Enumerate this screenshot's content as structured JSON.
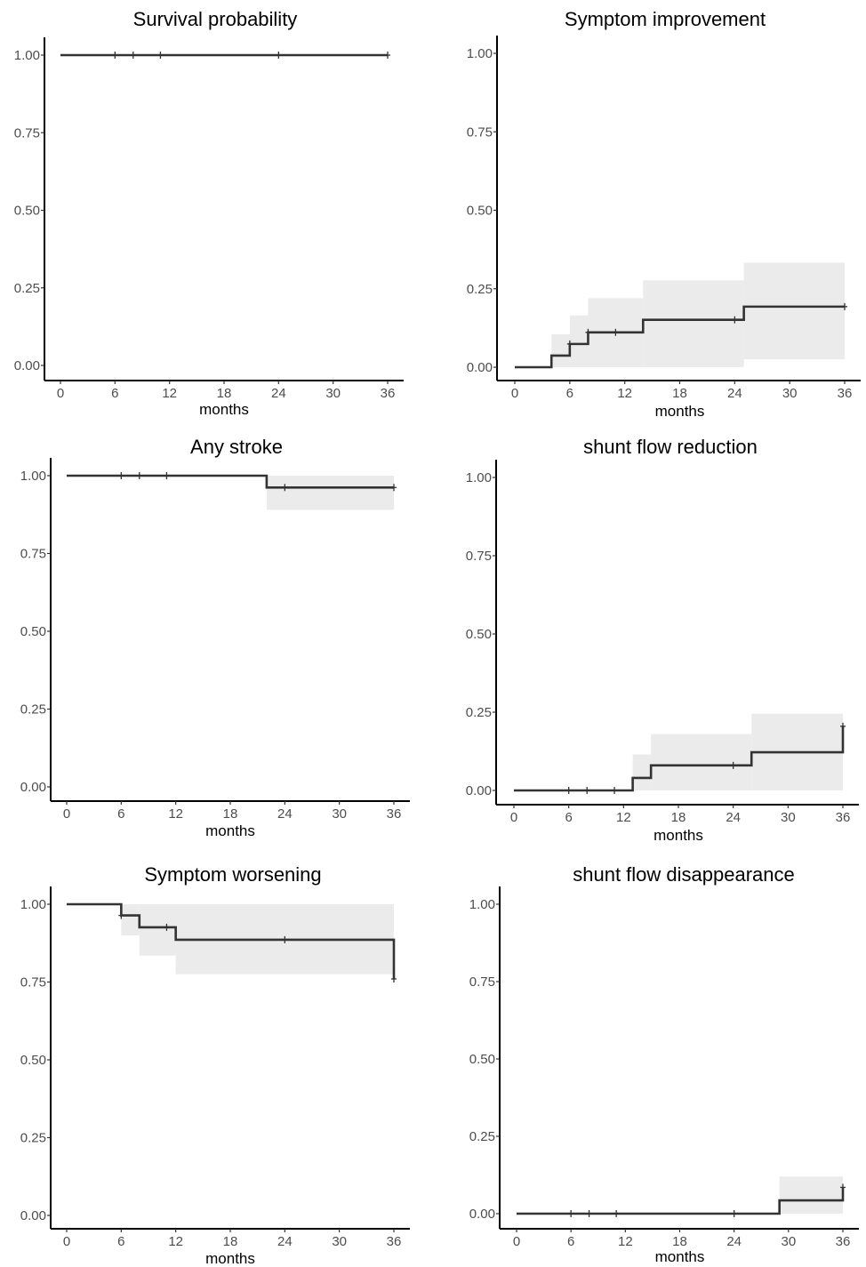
{
  "chart_data": [
    {
      "type": "line",
      "title": "Survival probability",
      "xlabel": "months",
      "ylabel": "",
      "xlim": [
        0,
        36
      ],
      "ylim": [
        0,
        1
      ],
      "x_ticks": [
        0,
        6,
        12,
        18,
        24,
        30,
        36
      ],
      "y_ticks": [
        "0.00",
        "0.25",
        "0.50",
        "0.75",
        "1.00"
      ],
      "series": [
        {
          "steps": [
            [
              0,
              1.0
            ],
            [
              36,
              1.0
            ]
          ],
          "ci": [],
          "censored": [
            [
              6,
              1.0
            ],
            [
              8,
              1.0
            ],
            [
              11,
              1.0
            ],
            [
              24,
              1.0
            ],
            [
              36,
              1.0
            ]
          ]
        }
      ]
    },
    {
      "type": "line",
      "title": "Symptom improvement",
      "xlabel": "months",
      "ylabel": "",
      "xlim": [
        0,
        36
      ],
      "ylim": [
        0,
        1
      ],
      "x_ticks": [
        0,
        6,
        12,
        18,
        24,
        30,
        36
      ],
      "y_ticks": [
        "0.00",
        "0.25",
        "0.50",
        "0.75",
        "1.00"
      ],
      "series": [
        {
          "steps": [
            [
              0,
              0.0
            ],
            [
              4,
              0.037
            ],
            [
              6,
              0.074
            ],
            [
              8,
              0.111
            ],
            [
              14,
              0.151
            ],
            [
              25,
              0.193
            ],
            [
              36,
              0.193
            ]
          ],
          "ci": [
            [
              4,
              0.0,
              0.105
            ],
            [
              6,
              0.0,
              0.165
            ],
            [
              8,
              0.0,
              0.22
            ],
            [
              14,
              0.0,
              0.277
            ],
            [
              25,
              0.025,
              0.333
            ],
            [
              36,
              0.025,
              0.333
            ]
          ],
          "censored": [
            [
              6,
              0.074
            ],
            [
              8,
              0.111
            ],
            [
              11,
              0.111
            ],
            [
              24,
              0.151
            ],
            [
              36,
              0.193
            ]
          ]
        }
      ]
    },
    {
      "type": "line",
      "title": "Any stroke",
      "xlabel": "months",
      "ylabel": "",
      "xlim": [
        0,
        36
      ],
      "ylim": [
        0,
        1
      ],
      "x_ticks": [
        0,
        6,
        12,
        18,
        24,
        30,
        36
      ],
      "y_ticks": [
        "0.00",
        "0.25",
        "0.50",
        "0.75",
        "1.00"
      ],
      "series": [
        {
          "steps": [
            [
              0,
              1.0
            ],
            [
              22,
              0.962
            ],
            [
              36,
              0.962
            ]
          ],
          "ci": [
            [
              22,
              0.89,
              1.0
            ],
            [
              36,
              0.89,
              1.0
            ]
          ],
          "censored": [
            [
              6,
              1.0
            ],
            [
              8,
              1.0
            ],
            [
              11,
              1.0
            ],
            [
              24,
              0.962
            ],
            [
              36,
              0.962
            ]
          ]
        }
      ]
    },
    {
      "type": "line",
      "title": "shunt flow reduction",
      "xlabel": "months",
      "ylabel": "",
      "xlim": [
        0,
        36
      ],
      "ylim": [
        0,
        1
      ],
      "x_ticks": [
        0,
        6,
        12,
        18,
        24,
        30,
        36
      ],
      "y_ticks": [
        "0.00",
        "0.25",
        "0.50",
        "0.75",
        "1.00"
      ],
      "series": [
        {
          "steps": [
            [
              0,
              0.0
            ],
            [
              13,
              0.04
            ],
            [
              15,
              0.08
            ],
            [
              26,
              0.122
            ],
            [
              36,
              0.205
            ]
          ],
          "ci": [
            [
              13,
              0.0,
              0.115
            ],
            [
              15,
              0.0,
              0.18
            ],
            [
              26,
              0.0,
              0.245
            ],
            [
              36,
              0.0,
              0.245
            ]
          ],
          "censored": [
            [
              6,
              0.0
            ],
            [
              8,
              0.0
            ],
            [
              11,
              0.0
            ],
            [
              24,
              0.08
            ],
            [
              36,
              0.205
            ]
          ]
        }
      ]
    },
    {
      "type": "line",
      "title": "Symptom worsening",
      "xlabel": "months",
      "ylabel": "",
      "xlim": [
        0,
        36
      ],
      "ylim": [
        0,
        1
      ],
      "x_ticks": [
        0,
        6,
        12,
        18,
        24,
        30,
        36
      ],
      "y_ticks": [
        "0.00",
        "0.25",
        "0.50",
        "0.75",
        "1.00"
      ],
      "series": [
        {
          "steps": [
            [
              0,
              1.0
            ],
            [
              6,
              0.964
            ],
            [
              8,
              0.926
            ],
            [
              12,
              0.886
            ],
            [
              36,
              0.76
            ]
          ],
          "ci": [
            [
              6,
              0.9,
              1.0
            ],
            [
              8,
              0.835,
              1.0
            ],
            [
              12,
              0.775,
              1.0
            ],
            [
              36,
              0.775,
              1.0
            ]
          ],
          "censored": [
            [
              6,
              0.964
            ],
            [
              11,
              0.926
            ],
            [
              24,
              0.886
            ],
            [
              36,
              0.76
            ]
          ]
        }
      ]
    },
    {
      "type": "line",
      "title": "shunt flow disappearance",
      "xlabel": "months",
      "ylabel": "",
      "xlim": [
        0,
        36
      ],
      "ylim": [
        0,
        1
      ],
      "x_ticks": [
        0,
        6,
        12,
        18,
        24,
        30,
        36
      ],
      "y_ticks": [
        "0.00",
        "0.25",
        "0.50",
        "0.75",
        "1.00"
      ],
      "series": [
        {
          "steps": [
            [
              0,
              0.0
            ],
            [
              29,
              0.043
            ],
            [
              36,
              0.085
            ]
          ],
          "ci": [
            [
              29,
              0.0,
              0.12
            ],
            [
              36,
              0.0,
              0.12
            ]
          ],
          "censored": [
            [
              6,
              0.0
            ],
            [
              8,
              0.0
            ],
            [
              11,
              0.0
            ],
            [
              24,
              0.0
            ],
            [
              36,
              0.085
            ]
          ]
        }
      ]
    }
  ]
}
